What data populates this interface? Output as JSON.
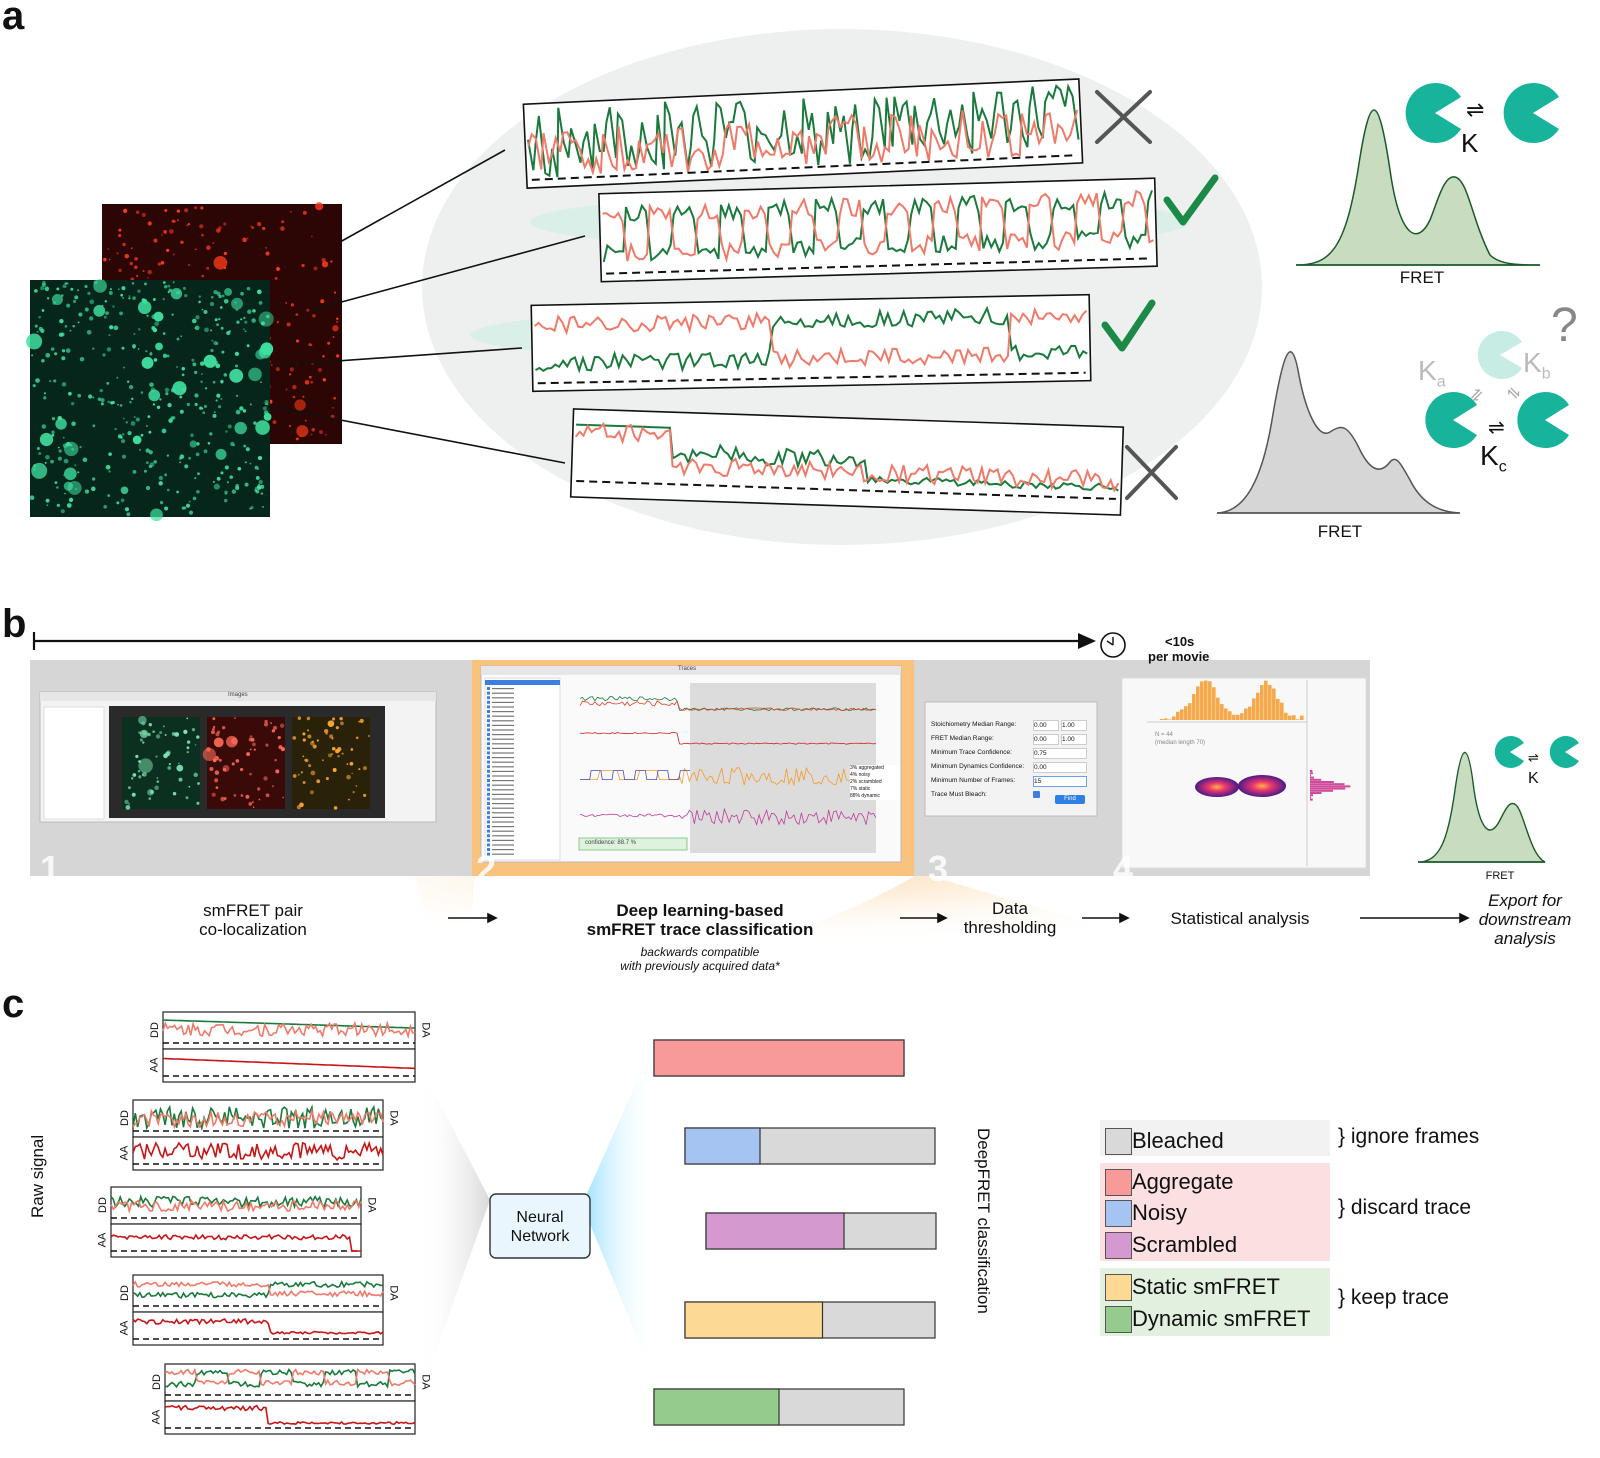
{
  "panels": {
    "a": "a",
    "b": "b",
    "c": "c"
  },
  "panel_a": {
    "fret_label_top": "FRET",
    "fret_label_bottom": "FRET",
    "rate_top": "K",
    "rate_c_main": "K",
    "rate_c_sub": "c",
    "rate_a_main": "K",
    "rate_a_sub": "a",
    "rate_b_main": "K",
    "rate_b_sub": "b",
    "question": "?",
    "equilibrium": "⇌",
    "colors": {
      "donor": "#1a7a3c",
      "acceptor": "#f07a6a",
      "check": "#1c8a47",
      "cross": "#555555",
      "kde_top": "#c8dcbf",
      "kde_bottom": "#d6d6d6",
      "pacman": "#17b39b"
    }
  },
  "panel_b": {
    "timer_main": "<10s",
    "timer_sub": "per movie",
    "steps": [
      {
        "num": "1",
        "label_l1": "smFRET pair",
        "label_l2": "co-localization"
      },
      {
        "num": "2",
        "label_l1": "Deep learning-based",
        "label_l2": "smFRET trace classification",
        "note_l1": "backwards compatible",
        "note_l2": "with previously acquired data*"
      },
      {
        "num": "3",
        "label_l1": "Data",
        "label_l2": "thresholding"
      },
      {
        "num": "4",
        "label_l1": "Statistical analysis",
        "label_l2": ""
      }
    ],
    "export_l1": "Export for",
    "export_l2": "downstream",
    "export_l3": "analysis",
    "export_fret": "FRET",
    "export_rate": "K",
    "win1_title": "Images",
    "win2_title": "Traces",
    "win2_confidence": "confidence: 88.7 %",
    "win2_legend": [
      "3% aggregated",
      "4% noisy",
      "2% scrambled",
      "7% static",
      "88% dynamic"
    ],
    "win3_fields": [
      {
        "label": "Stoichiometry Median Range:",
        "v1": "0.00",
        "v2": "1.00"
      },
      {
        "label": "FRET Median Range:",
        "v1": "0.00",
        "v2": "1.00"
      },
      {
        "label": "Minimum Trace Confidence:",
        "v1": "0.75",
        "v2": ""
      },
      {
        "label": "Minimum Dynamics Confidence:",
        "v1": "0.00",
        "v2": ""
      },
      {
        "label": "Minimum Number of Frames:",
        "v1": "15",
        "v2": ""
      },
      {
        "label": "Trace Must Bleach:",
        "v1": "",
        "v2": ""
      }
    ],
    "win3_button": "Find",
    "win4_n": "N = 44",
    "win4_median": "(median length 70)"
  },
  "panel_c": {
    "raw_signal": "Raw signal",
    "nn_l1": "Neural",
    "nn_l2": "Network",
    "classification_label": "DeepFRET classification",
    "channel_dd": "DD",
    "channel_aa": "AA",
    "channel_da": "DA",
    "categories": [
      {
        "name": "Bleached",
        "color": "#d9d9d9"
      },
      {
        "name": "Aggregate",
        "color": "#f99a9a"
      },
      {
        "name": "Noisy",
        "color": "#a5c4f2"
      },
      {
        "name": "Scrambled",
        "color": "#d49ad0"
      },
      {
        "name": "Static smFRET",
        "color": "#fcd995"
      },
      {
        "name": "Dynamic smFRET",
        "color": "#95cc8e"
      }
    ],
    "groups": [
      {
        "label": "} ignore frames",
        "bg": "#f2f2f2"
      },
      {
        "label": "} discard trace",
        "bg": "#fbdfe1"
      },
      {
        "label": "} keep trace",
        "bg": "#e2f0df"
      }
    ],
    "bars": [
      {
        "category": "Aggregate",
        "fraction": 1.0
      },
      {
        "category": "Noisy",
        "fraction": 0.3
      },
      {
        "category": "Scrambled",
        "fraction": 0.6
      },
      {
        "category": "Static smFRET",
        "fraction": 0.55
      },
      {
        "category": "Dynamic smFRET",
        "fraction": 0.5
      }
    ]
  }
}
